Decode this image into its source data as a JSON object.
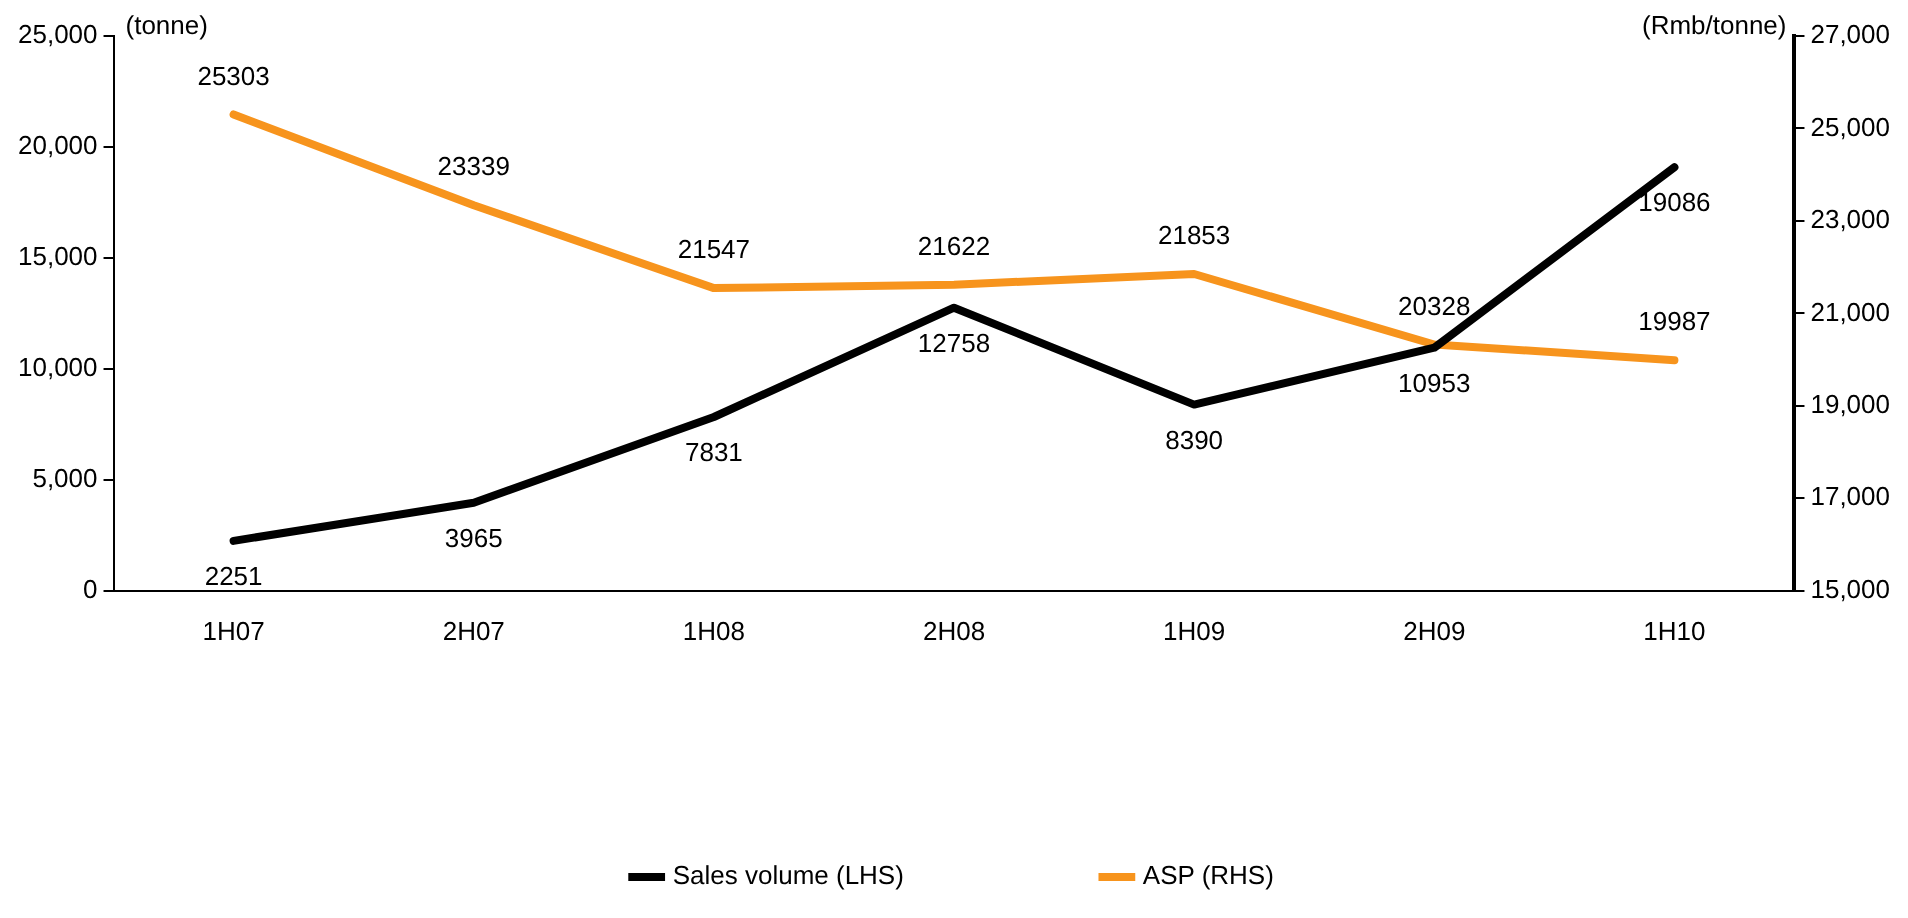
{
  "chart_data": {
    "type": "line",
    "categories": [
      "1H07",
      "2H07",
      "1H08",
      "2H08",
      "1H09",
      "2H09",
      "1H10"
    ],
    "ylabel": "(tonne)",
    "y2label": "(Rmb/tonne)",
    "series": [
      {
        "name": "Sales volume (LHS)",
        "color": "#000000",
        "values": [
          2251,
          3965,
          7831,
          12758,
          8390,
          10953,
          19086
        ]
      },
      {
        "name": "ASP (RHS)",
        "color": "#f7941d",
        "axis": "y2",
        "values": [
          25303,
          23339,
          21547,
          21622,
          21853,
          20328,
          19987
        ]
      }
    ],
    "ylim": [
      0,
      25000
    ],
    "yticks": [
      {
        "value": 0,
        "label": "0"
      },
      {
        "value": 5000,
        "label": "5,000"
      },
      {
        "value": 10000,
        "label": "10,000"
      },
      {
        "value": 15000,
        "label": "15,000"
      },
      {
        "value": 20000,
        "label": "20,000"
      },
      {
        "value": 25000,
        "label": "25,000"
      }
    ],
    "y2lim": [
      15000,
      27000
    ],
    "y2ticks": [
      {
        "value": 15000,
        "label": "15,000"
      },
      {
        "value": 17000,
        "label": "17,000"
      },
      {
        "value": 19000,
        "label": "19,000"
      },
      {
        "value": 21000,
        "label": "21,000"
      },
      {
        "value": 23000,
        "label": "23,000"
      },
      {
        "value": 25000,
        "label": "25,000"
      },
      {
        "value": 27000,
        "label": "27,000"
      }
    ],
    "grid": false,
    "legend": "bottom",
    "marker": "none",
    "line_style": "solid",
    "data_labels": true
  }
}
